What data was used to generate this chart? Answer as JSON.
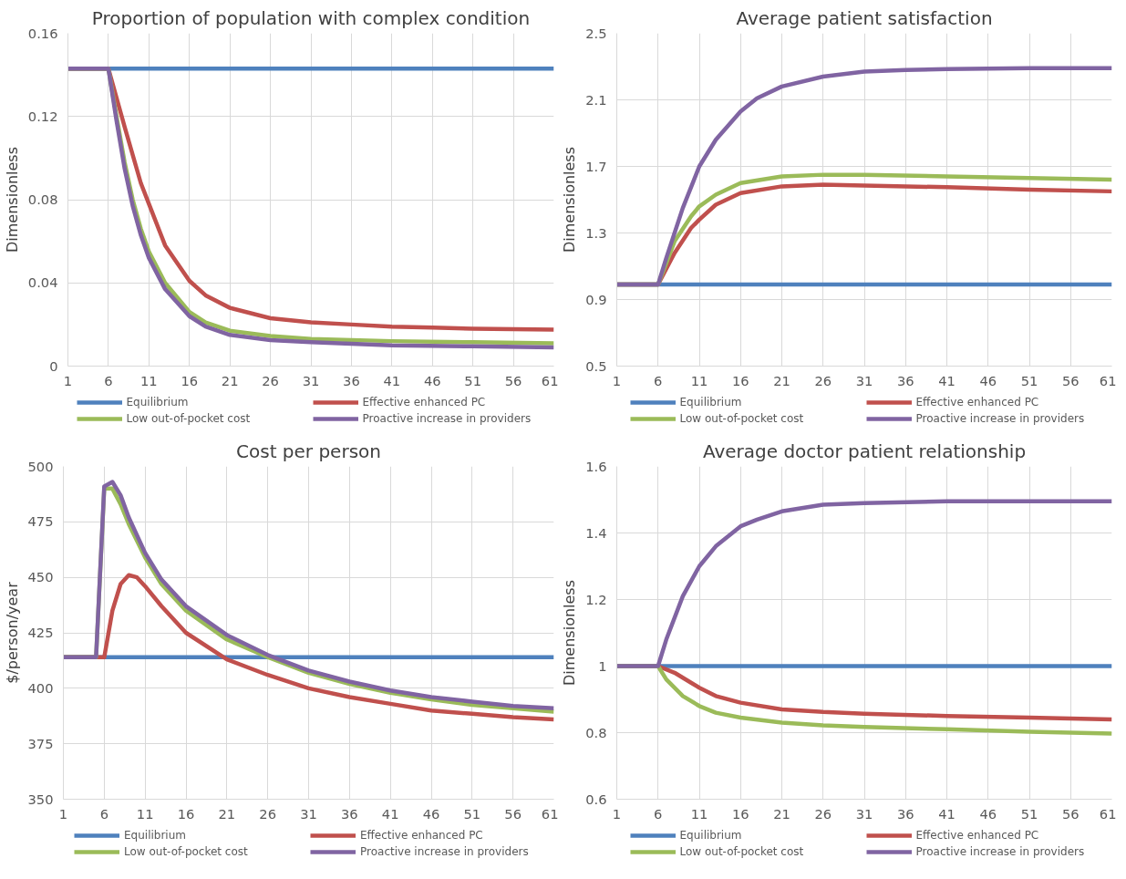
{
  "chart_data": [
    {
      "type": "line",
      "title": "Proportion of population with complex condition",
      "ylabel": "Dimensionless",
      "xlim": [
        1,
        61
      ],
      "xticks": [
        1,
        6,
        11,
        16,
        21,
        26,
        31,
        36,
        41,
        46,
        51,
        56,
        61
      ],
      "ylim": [
        0,
        0.16
      ],
      "yticks": [
        0,
        0.04,
        0.08,
        0.12,
        0.16
      ],
      "grid": true,
      "legend": "bottom",
      "marker": "none",
      "line_style": "solid",
      "series": [
        {
          "name": "Equilibrium",
          "color": "#4f81bd",
          "x": [
            1,
            61
          ],
          "values": [
            0.143,
            0.143
          ]
        },
        {
          "name": "Effective enhanced PC",
          "color": "#c0504d",
          "x": [
            1,
            6,
            8,
            10,
            11,
            13,
            16,
            18,
            21,
            26,
            31,
            36,
            41,
            46,
            51,
            56,
            61
          ],
          "values": [
            0.143,
            0.143,
            0.115,
            0.088,
            0.078,
            0.058,
            0.041,
            0.034,
            0.028,
            0.023,
            0.021,
            0.02,
            0.019,
            0.0185,
            0.018,
            0.0178,
            0.0175
          ]
        },
        {
          "name": "Low out-of-pocket cost",
          "color": "#9bbb59",
          "x": [
            1,
            6,
            7,
            8,
            9,
            10,
            11,
            13,
            16,
            18,
            21,
            26,
            31,
            41,
            51,
            61
          ],
          "values": [
            0.143,
            0.143,
            0.12,
            0.098,
            0.08,
            0.066,
            0.055,
            0.04,
            0.026,
            0.021,
            0.017,
            0.0145,
            0.013,
            0.012,
            0.0115,
            0.011
          ]
        },
        {
          "name": "Proactive increase in providers",
          "color": "#8064a2",
          "x": [
            1,
            6,
            7,
            8,
            9,
            10,
            11,
            13,
            16,
            18,
            21,
            26,
            31,
            41,
            51,
            61
          ],
          "values": [
            0.143,
            0.143,
            0.118,
            0.095,
            0.077,
            0.063,
            0.052,
            0.037,
            0.024,
            0.019,
            0.015,
            0.0125,
            0.0115,
            0.01,
            0.0095,
            0.009
          ]
        }
      ]
    },
    {
      "type": "line",
      "title": "Average patient satisfaction",
      "ylabel": "Dimensionless",
      "xlim": [
        1,
        61
      ],
      "xticks": [
        1,
        6,
        11,
        16,
        21,
        26,
        31,
        36,
        41,
        46,
        51,
        56,
        61
      ],
      "ylim": [
        0.5,
        2.5
      ],
      "yticks": [
        0.5,
        0.9,
        1.3,
        1.7,
        2.1,
        2.5
      ],
      "grid": true,
      "legend": "bottom",
      "marker": "none",
      "line_style": "solid",
      "series": [
        {
          "name": "Equilibrium",
          "color": "#4f81bd",
          "x": [
            1,
            61
          ],
          "values": [
            0.99,
            0.99
          ]
        },
        {
          "name": "Effective enhanced PC",
          "color": "#c0504d",
          "x": [
            1,
            6,
            8,
            10,
            11,
            13,
            16,
            21,
            26,
            31,
            41,
            51,
            61
          ],
          "values": [
            0.99,
            0.99,
            1.18,
            1.33,
            1.38,
            1.47,
            1.54,
            1.58,
            1.59,
            1.585,
            1.575,
            1.56,
            1.55
          ]
        },
        {
          "name": "Low out-of-pocket cost",
          "color": "#9bbb59",
          "x": [
            1,
            6,
            8,
            10,
            11,
            13,
            16,
            21,
            26,
            31,
            41,
            51,
            61
          ],
          "values": [
            0.99,
            0.99,
            1.25,
            1.4,
            1.46,
            1.53,
            1.6,
            1.64,
            1.65,
            1.65,
            1.64,
            1.63,
            1.62
          ]
        },
        {
          "name": "Proactive increase in providers",
          "color": "#8064a2",
          "x": [
            1,
            6,
            7,
            9,
            11,
            13,
            16,
            18,
            21,
            26,
            31,
            36,
            41,
            51,
            61
          ],
          "values": [
            0.99,
            0.99,
            1.15,
            1.45,
            1.7,
            1.86,
            2.03,
            2.11,
            2.18,
            2.24,
            2.27,
            2.28,
            2.285,
            2.29,
            2.29
          ]
        }
      ]
    },
    {
      "type": "line",
      "title": "Cost per person",
      "ylabel": "$/person/year",
      "xlim": [
        1,
        61
      ],
      "xticks": [
        1,
        6,
        11,
        16,
        21,
        26,
        31,
        36,
        41,
        46,
        51,
        56,
        61
      ],
      "ylim": [
        350,
        500
      ],
      "yticks": [
        350,
        375,
        400,
        425,
        450,
        475,
        500
      ],
      "grid": true,
      "legend": "bottom",
      "marker": "none",
      "line_style": "solid",
      "series": [
        {
          "name": "Equilibrium",
          "color": "#4f81bd",
          "x": [
            1,
            61
          ],
          "values": [
            414,
            414
          ]
        },
        {
          "name": "Effective enhanced PC",
          "color": "#c0504d",
          "x": [
            1,
            6,
            7,
            8,
            9,
            10,
            11,
            13,
            16,
            21,
            26,
            31,
            36,
            41,
            46,
            51,
            56,
            61
          ],
          "values": [
            414,
            414,
            435,
            447,
            451,
            450,
            446,
            437,
            425,
            413,
            406,
            400,
            396,
            393,
            390,
            388.5,
            387,
            386
          ]
        },
        {
          "name": "Low out-of-pocket cost",
          "color": "#9bbb59",
          "x": [
            1,
            5,
            6,
            7,
            8,
            9,
            11,
            13,
            16,
            21,
            26,
            31,
            36,
            41,
            46,
            51,
            56,
            61
          ],
          "values": [
            414,
            414,
            490,
            490,
            483,
            474,
            459,
            447,
            435,
            422,
            414,
            407,
            402,
            398,
            395,
            392.5,
            391,
            389.5
          ]
        },
        {
          "name": "Proactive increase in providers",
          "color": "#8064a2",
          "x": [
            1,
            5,
            6,
            7,
            8,
            9,
            11,
            13,
            16,
            21,
            26,
            31,
            36,
            41,
            46,
            51,
            56,
            61
          ],
          "values": [
            414,
            414,
            491,
            493,
            487,
            477,
            461,
            449,
            437,
            424,
            415,
            408,
            403,
            399,
            396,
            394,
            392,
            391
          ]
        }
      ]
    },
    {
      "type": "line",
      "title": "Average doctor patient relationship",
      "ylabel": "Dimensionless",
      "xlim": [
        1,
        61
      ],
      "xticks": [
        1,
        6,
        11,
        16,
        21,
        26,
        31,
        36,
        41,
        46,
        51,
        56,
        61
      ],
      "ylim": [
        0.6,
        1.6
      ],
      "yticks": [
        0.6,
        0.8,
        1,
        1.2,
        1.4,
        1.6
      ],
      "grid": true,
      "legend": "bottom",
      "marker": "none",
      "line_style": "solid",
      "series": [
        {
          "name": "Equilibrium",
          "color": "#4f81bd",
          "x": [
            1,
            61
          ],
          "values": [
            1,
            1
          ]
        },
        {
          "name": "Effective enhanced PC",
          "color": "#c0504d",
          "x": [
            1,
            6,
            8,
            10,
            11,
            13,
            16,
            21,
            26,
            31,
            41,
            51,
            61
          ],
          "values": [
            1,
            1,
            0.98,
            0.95,
            0.935,
            0.91,
            0.89,
            0.87,
            0.862,
            0.857,
            0.85,
            0.845,
            0.84
          ]
        },
        {
          "name": "Low out-of-pocket cost",
          "color": "#9bbb59",
          "x": [
            1,
            6,
            7,
            9,
            11,
            13,
            16,
            21,
            26,
            31,
            41,
            51,
            61
          ],
          "values": [
            1,
            1,
            0.96,
            0.91,
            0.88,
            0.86,
            0.845,
            0.83,
            0.822,
            0.817,
            0.81,
            0.803,
            0.797
          ]
        },
        {
          "name": "Proactive increase in providers",
          "color": "#8064a2",
          "x": [
            1,
            6,
            7,
            9,
            11,
            13,
            16,
            18,
            21,
            26,
            31,
            41,
            61
          ],
          "values": [
            1,
            1,
            1.08,
            1.21,
            1.3,
            1.36,
            1.42,
            1.44,
            1.465,
            1.485,
            1.49,
            1.495,
            1.495
          ]
        }
      ]
    }
  ]
}
